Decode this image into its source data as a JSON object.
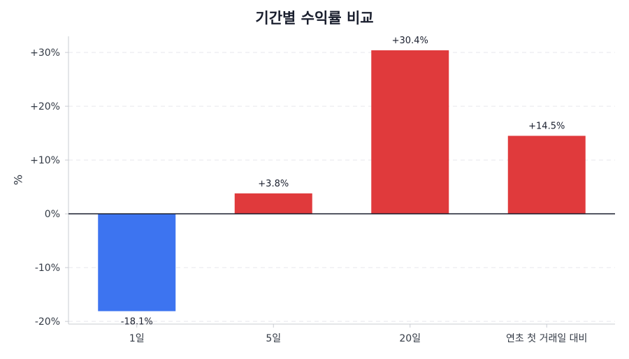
{
  "chart_data": {
    "type": "bar",
    "title": "기간별 수익률 비교",
    "ylabel": "%",
    "xlabel": "",
    "categories": [
      "1일",
      "5일",
      "20일",
      "연초 첫 거래일 대비"
    ],
    "values": [
      -18.1,
      3.8,
      30.4,
      14.5
    ],
    "value_labels": [
      "-18.1%",
      "+3.8%",
      "+30.4%",
      "+14.5%"
    ],
    "ylim": [
      -20.5,
      33
    ],
    "yticks": [
      -20,
      -10,
      0,
      10,
      20,
      30
    ],
    "ytick_labels": [
      "-20%",
      "-10%",
      "0%",
      "+10%",
      "+20%",
      "+30%"
    ],
    "grid": true,
    "colors": {
      "positive": "#e03a3c",
      "negative": "#3d74f0",
      "zero_line": "#1a1f2e",
      "grid": "#e6e8ec",
      "axis": "#c9ccd2",
      "text": "#333a45"
    }
  }
}
